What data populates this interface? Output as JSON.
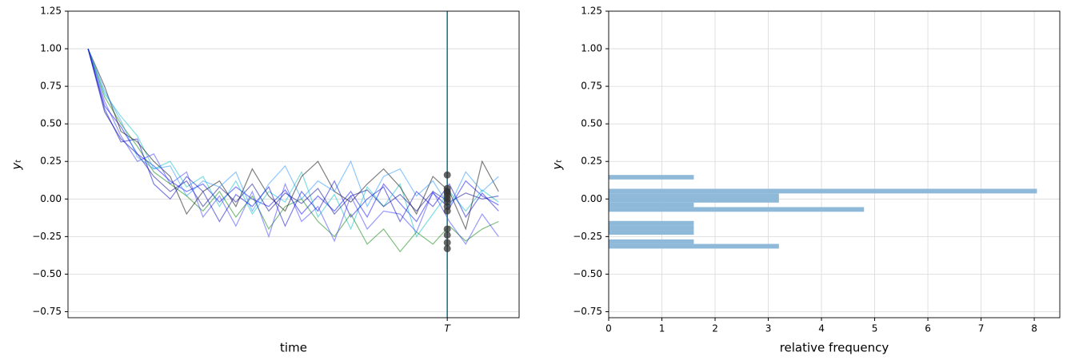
{
  "chart_data": [
    {
      "type": "line",
      "xlabel": "time",
      "ylabel": "yₜ",
      "xlim": [
        -4.9,
        105
      ],
      "ylim": [
        -0.79,
        1.25
      ],
      "xticks": [
        {
          "value": 87.5,
          "label": "T"
        }
      ],
      "yticks": [
        {
          "value": 1.25,
          "label": "1.25"
        },
        {
          "value": 1,
          "label": "1.00"
        },
        {
          "value": 0.75,
          "label": "0.75"
        },
        {
          "value": 0.5,
          "label": "0.50"
        },
        {
          "value": 0.25,
          "label": "0.25"
        },
        {
          "value": 0,
          "label": "0.00"
        },
        {
          "value": -0.25,
          "label": "−0.25"
        },
        {
          "value": -0.5,
          "label": "−0.50"
        },
        {
          "value": -0.75,
          "label": "−0.75"
        }
      ],
      "grid": "y",
      "vline_color": "#1f7a8c",
      "marker_color": "#333333",
      "x": [
        0,
        4,
        8,
        12,
        16,
        20,
        24,
        28,
        32,
        36,
        40,
        44,
        48,
        52,
        56,
        60,
        64,
        68,
        72,
        76,
        80,
        84,
        88,
        92,
        96,
        100
      ],
      "series": [
        {
          "color": "#0000ff",
          "values": [
            1.0,
            0.62,
            0.48,
            0.3,
            0.22,
            0.12,
            0.05,
            0.1,
            -0.02,
            0.08,
            0.0,
            -0.05,
            0.06,
            -0.1,
            0.02,
            -0.08,
            0.05,
            -0.12,
            0.1,
            -0.03,
            -0.15,
            0.04,
            -0.06,
            0.12,
            0.02,
            -0.04
          ]
        },
        {
          "color": "#00bfbf",
          "values": [
            1.0,
            0.7,
            0.55,
            0.42,
            0.2,
            0.25,
            0.08,
            0.15,
            -0.05,
            0.12,
            -0.1,
            0.05,
            -0.02,
            0.18,
            -0.12,
            0.03,
            -0.2,
            0.08,
            -0.05,
            0.1,
            -0.25,
            -0.1,
            0.05,
            -0.08,
            0.06,
            -0.02
          ]
        },
        {
          "color": "#008000",
          "values": [
            1.0,
            0.68,
            0.5,
            0.35,
            0.18,
            0.1,
            0.02,
            -0.08,
            0.05,
            -0.12,
            0.02,
            -0.2,
            -0.05,
            0.0,
            -0.15,
            -0.25,
            -0.1,
            -0.3,
            -0.2,
            -0.35,
            -0.22,
            -0.3,
            -0.18,
            -0.28,
            -0.2,
            -0.15
          ]
        },
        {
          "color": "#000000",
          "values": [
            1.0,
            0.75,
            0.45,
            0.38,
            0.25,
            0.15,
            -0.1,
            0.05,
            0.12,
            -0.05,
            0.2,
            0.02,
            -0.08,
            0.15,
            0.25,
            0.05,
            -0.02,
            0.1,
            0.2,
            0.08,
            -0.1,
            0.15,
            0.05,
            -0.2,
            0.25,
            0.05
          ]
        },
        {
          "color": "#00008b",
          "values": [
            1.0,
            0.58,
            0.4,
            0.3,
            0.15,
            0.05,
            0.12,
            -0.05,
            0.08,
            -0.02,
            0.1,
            -0.08,
            0.04,
            -0.03,
            0.07,
            -0.1,
            0.02,
            0.06,
            -0.05,
            0.03,
            -0.08,
            0.05,
            -0.02,
            0.04,
            0.0,
            0.02
          ]
        },
        {
          "color": "#3333ff",
          "values": [
            1.0,
            0.65,
            0.42,
            0.25,
            0.3,
            0.1,
            0.18,
            -0.12,
            0.02,
            -0.18,
            0.05,
            -0.25,
            0.1,
            -0.15,
            -0.05,
            -0.28,
            0.02,
            -0.2,
            -0.08,
            -0.1,
            -0.22,
            0.05,
            -0.15,
            -0.3,
            -0.1,
            -0.25
          ]
        },
        {
          "color": "#1e90ff",
          "values": [
            1.0,
            0.72,
            0.52,
            0.28,
            0.2,
            0.22,
            0.02,
            0.12,
            0.08,
            0.18,
            -0.08,
            0.1,
            0.22,
            0.0,
            0.12,
            0.05,
            0.25,
            -0.05,
            0.15,
            0.2,
            0.02,
            0.12,
            -0.05,
            0.18,
            0.05,
            0.15
          ]
        },
        {
          "color": "#0000cd",
          "values": [
            1.0,
            0.6,
            0.38,
            0.4,
            0.1,
            0.0,
            0.15,
            0.05,
            -0.15,
            0.03,
            -0.05,
            0.08,
            -0.18,
            0.05,
            -0.08,
            0.12,
            -0.12,
            0.0,
            0.08,
            -0.15,
            0.05,
            -0.05,
            0.1,
            -0.12,
            0.04,
            -0.08
          ]
        }
      ],
      "endpoint_values": [
        0.16,
        0.07,
        0.05,
        0.04,
        0.02,
        0.0,
        -0.02,
        -0.05,
        -0.08,
        -0.2,
        -0.24,
        -0.29,
        -0.33
      ]
    },
    {
      "type": "hbar-histogram",
      "xlabel": "relative frequency",
      "ylabel": "yₜ",
      "xlim": [
        0,
        8.48
      ],
      "ylim": [
        -0.79,
        1.25
      ],
      "xticks": [
        0,
        1,
        2,
        3,
        4,
        5,
        6,
        7,
        8
      ],
      "yticks": [
        {
          "value": 1.25,
          "label": "1.25"
        },
        {
          "value": 1,
          "label": "1.00"
        },
        {
          "value": 0.75,
          "label": "0.75"
        },
        {
          "value": 0.5,
          "label": "0.50"
        },
        {
          "value": 0.25,
          "label": "0.25"
        },
        {
          "value": 0,
          "label": "0.00"
        },
        {
          "value": -0.25,
          "label": "−0.25"
        },
        {
          "value": -0.5,
          "label": "−0.50"
        },
        {
          "value": -0.75,
          "label": "−0.75"
        }
      ],
      "grid": "both",
      "color": "#8fb9d8",
      "bins": [
        -0.33,
        -0.299,
        -0.269,
        -0.238,
        -0.208,
        -0.177,
        -0.146,
        -0.116,
        -0.085,
        -0.054,
        -0.024,
        0.007,
        0.037,
        0.068,
        0.099,
        0.13,
        0.16
      ],
      "values": [
        3.2,
        1.6,
        0,
        1.6,
        1.6,
        1.6,
        0,
        0,
        4.8,
        1.6,
        3.2,
        3.2,
        8.05,
        0,
        0,
        1.6
      ]
    }
  ]
}
